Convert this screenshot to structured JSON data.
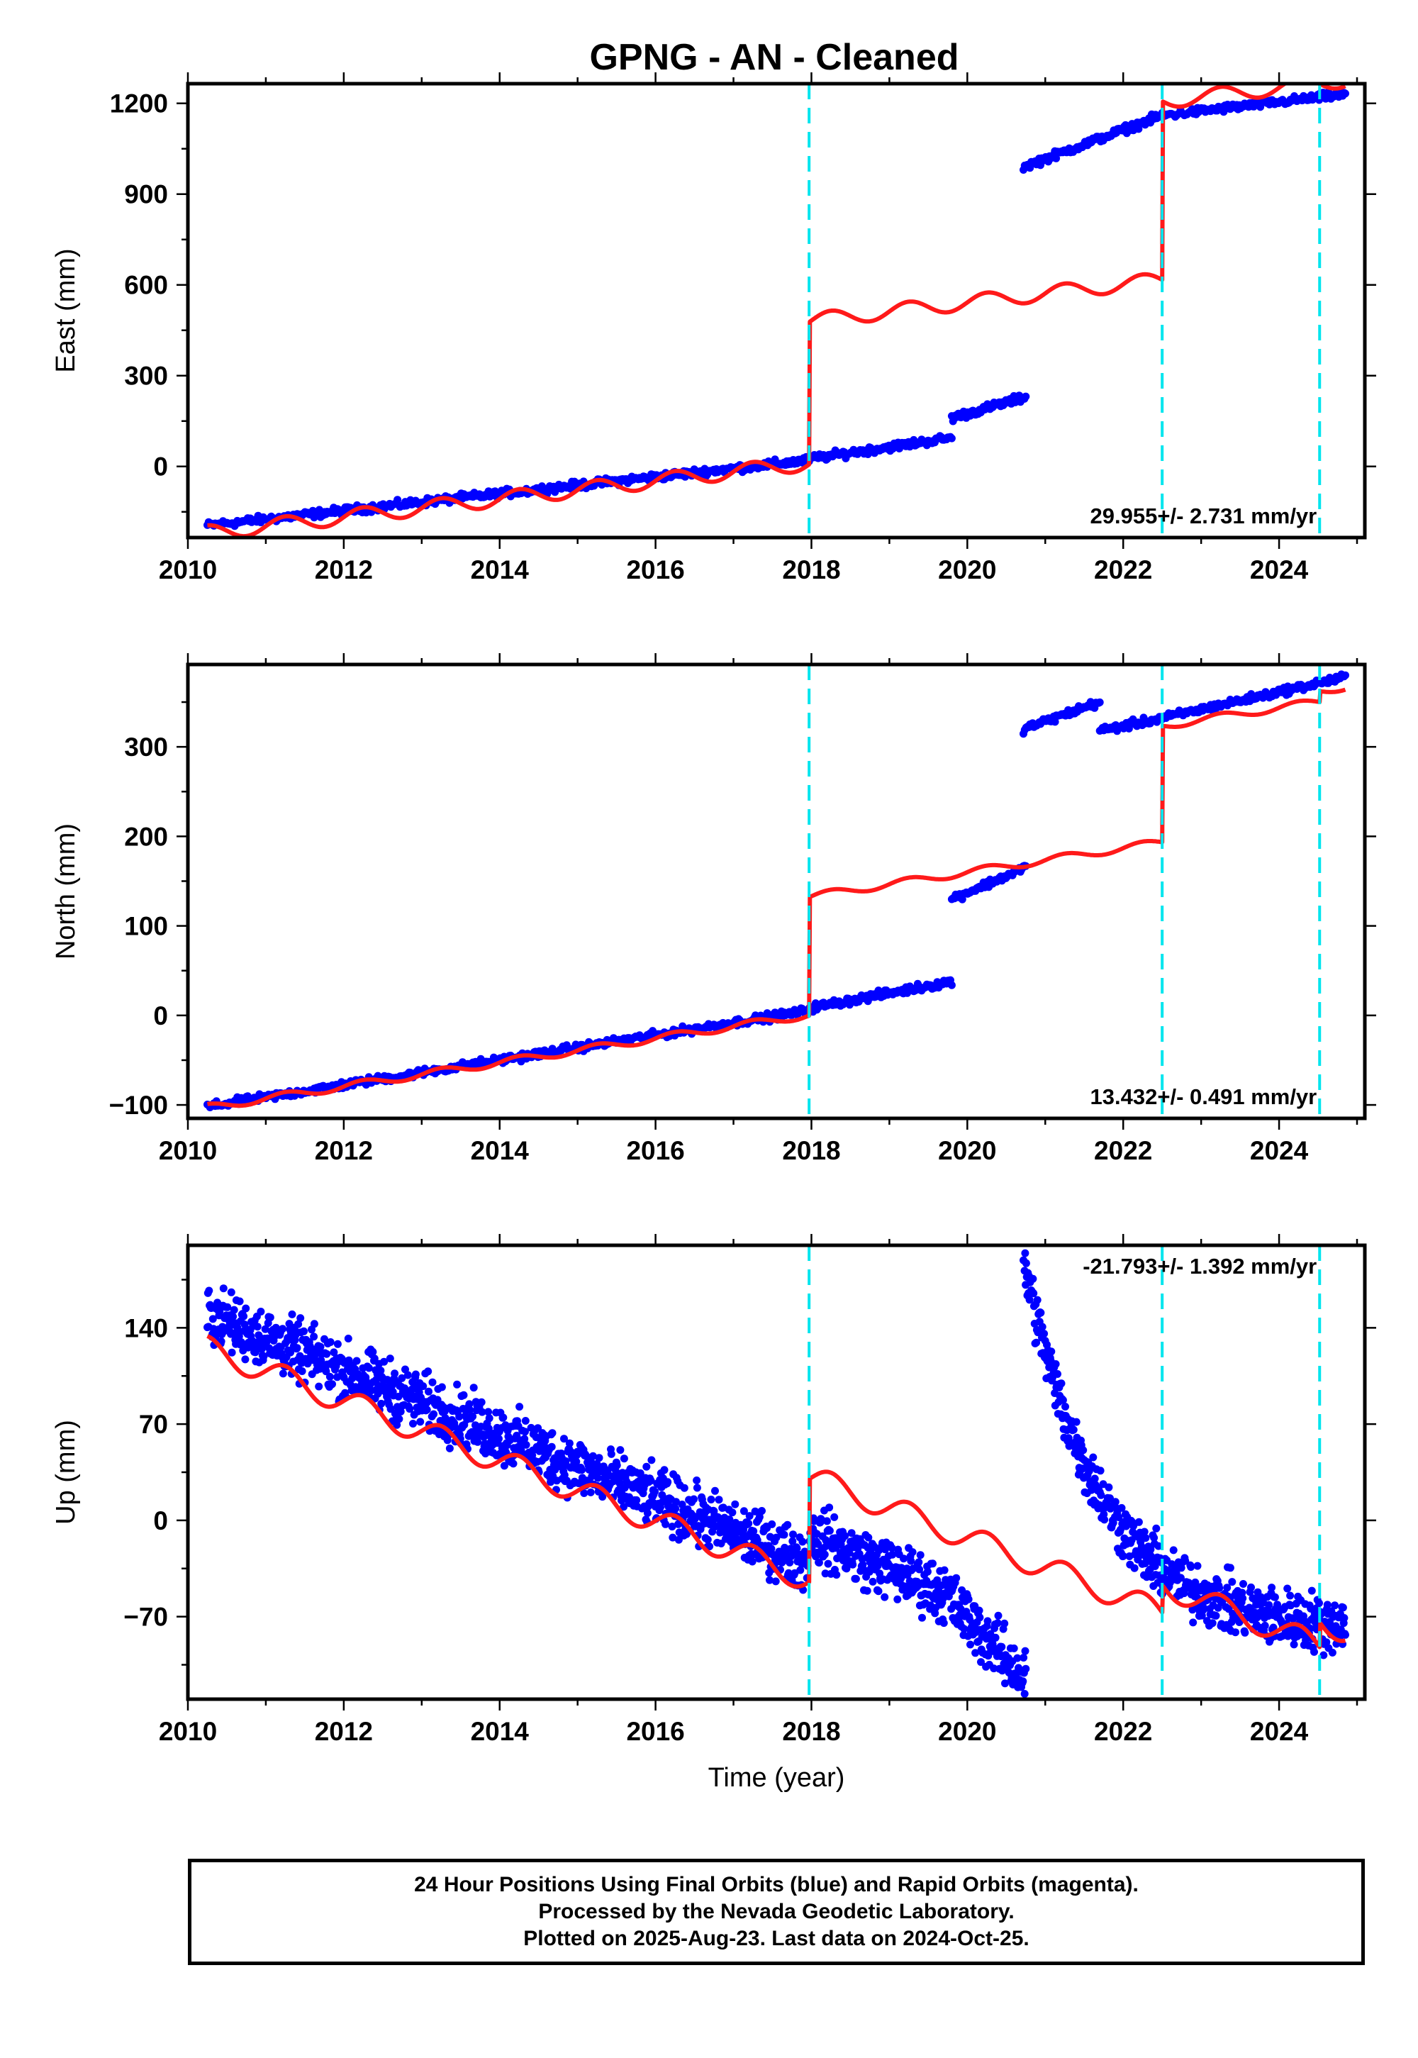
{
  "title": "GPNG  - AN - Cleaned",
  "footer": {
    "line1": "24 Hour Positions Using Final Orbits (blue) and Rapid Orbits (magenta).",
    "line2": "Processed by the Nevada Geodetic Laboratory.",
    "line3": "Plotted on 2025-Aug-23. Last data on 2024-Oct-25."
  },
  "colors": {
    "observations": "#0000ff",
    "model": "#ff0000",
    "events": "#00e5ee"
  },
  "chart_data": [
    {
      "type": "scatter",
      "ylabel": "East (mm)",
      "xlabel": "",
      "rate_label": "29.955+/- 2.731 mm/yr",
      "xlim": [
        2010.0,
        2025.1
      ],
      "ylim": [
        -235,
        1265
      ],
      "xticks": [
        2010,
        2012,
        2014,
        2016,
        2018,
        2020,
        2022,
        2024
      ],
      "yticks": [
        0,
        300,
        600,
        900,
        1200
      ],
      "events": [
        2017.97,
        2022.5,
        2024.52
      ],
      "observations": [
        {
          "x_start": 2010.25,
          "x_end": 2017.95,
          "y_start": -195,
          "y_end": 20
        },
        {
          "x_start": 2017.97,
          "x_end": 2019.8,
          "y_start": 25,
          "y_end": 95
        },
        {
          "x_start": 2019.8,
          "x_end": 2020.75,
          "y_start": 160,
          "y_end": 230
        },
        {
          "x_start": 2020.72,
          "x_end": 2022.5,
          "y_start": 990,
          "y_end": 1160
        },
        {
          "x_start": 2022.5,
          "x_end": 2024.85,
          "y_start": 1160,
          "y_end": 1230
        }
      ],
      "model": {
        "slope": 29.955,
        "offsets": [
          {
            "x": 2017.97,
            "dy": 470
          },
          {
            "x": 2022.5,
            "dy": 590
          },
          {
            "x": 2024.52,
            "dy": 0
          }
        ],
        "y0_at_2010": -220,
        "seasonal_amplitude": 25
      }
    },
    {
      "type": "scatter",
      "ylabel": "North (mm)",
      "xlabel": "",
      "rate_label": "13.432+/- 0.491 mm/yr",
      "xlim": [
        2010.0,
        2025.1
      ],
      "ylim": [
        -115,
        392
      ],
      "xticks": [
        2010,
        2012,
        2014,
        2016,
        2018,
        2020,
        2022,
        2024
      ],
      "yticks": [
        -100,
        0,
        100,
        200,
        300
      ],
      "events": [
        2017.97,
        2022.5,
        2024.52
      ],
      "observations": [
        {
          "x_start": 2010.25,
          "x_end": 2017.95,
          "y_start": -102,
          "y_end": 5
        },
        {
          "x_start": 2017.97,
          "x_end": 2019.8,
          "y_start": 8,
          "y_end": 38
        },
        {
          "x_start": 2019.8,
          "x_end": 2020.75,
          "y_start": 130,
          "y_end": 165
        },
        {
          "x_start": 2020.72,
          "x_end": 2021.7,
          "y_start": 320,
          "y_end": 350
        },
        {
          "x_start": 2021.7,
          "x_end": 2022.5,
          "y_start": 318,
          "y_end": 332
        },
        {
          "x_start": 2022.5,
          "x_end": 2024.85,
          "y_start": 332,
          "y_end": 378
        }
      ],
      "model": {
        "slope": 13.432,
        "offsets": [
          {
            "x": 2017.97,
            "dy": 132
          },
          {
            "x": 2022.5,
            "dy": 130
          },
          {
            "x": 2024.52,
            "dy": 12
          }
        ],
        "y0_at_2010": -103,
        "seasonal_amplitude": 4
      }
    },
    {
      "type": "scatter",
      "ylabel": "Up (mm)",
      "xlabel": "Time (year)",
      "rate_label": "-21.793+/- 1.392 mm/yr",
      "xlim": [
        2010.0,
        2025.1
      ],
      "ylim": [
        -130,
        200
      ],
      "xticks": [
        2010,
        2012,
        2014,
        2016,
        2018,
        2020,
        2022,
        2024
      ],
      "yticks": [
        -70,
        0,
        70,
        140
      ],
      "events": [
        2017.97,
        2022.5,
        2024.52
      ],
      "observations": [
        {
          "x_start": 2010.25,
          "x_end": 2017.95,
          "y_start": 150,
          "y_end": -30
        },
        {
          "x_start": 2017.97,
          "x_end": 2019.8,
          "y_start": -10,
          "y_end": -55
        },
        {
          "x_start": 2019.8,
          "x_end": 2020.75,
          "y_start": -60,
          "y_end": -115
        },
        {
          "x_start": 2020.72,
          "x_end": 2024.85,
          "y_start": 190,
          "y_end": -80
        }
      ],
      "model": {
        "slope": -21.793,
        "offsets": [
          {
            "x": 2017.97,
            "dy": 75
          },
          {
            "x": 2022.5,
            "dy": 20
          },
          {
            "x": 2024.52,
            "dy": 18
          }
        ],
        "y0_at_2010": 125,
        "seasonal_amplitude": 9
      }
    }
  ]
}
